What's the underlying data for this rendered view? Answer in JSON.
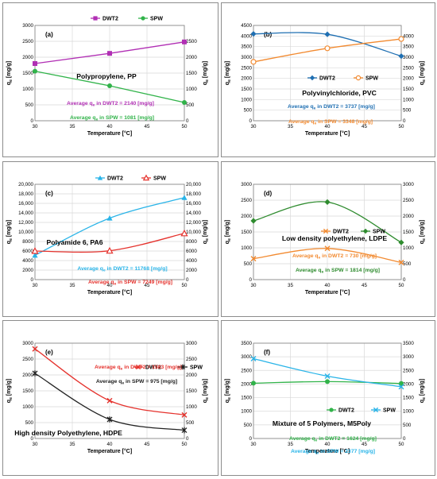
{
  "chart_data": [
    {
      "id": "a",
      "type": "line",
      "label": "(a)",
      "title": "Polypropylene, PP",
      "xlabel": "Temperature [°C]",
      "ylabel": "qe [mg/g]",
      "ylabel_symbol": "q",
      "ylabel_sub": "e",
      "ylabel_unit": " [mg/g]",
      "xlim": [
        30,
        50
      ],
      "xticks": [
        30,
        35,
        40,
        45,
        50
      ],
      "ylim": [
        0,
        3000
      ],
      "ytick_step": 500,
      "ylim_right": [
        0,
        3000
      ],
      "yticks_right": [
        0,
        500,
        1000,
        1500,
        2000,
        2500
      ],
      "x": [
        30,
        40,
        50
      ],
      "series": [
        {
          "name": "DWT2",
          "values": [
            1800,
            2120,
            2480
          ],
          "color": "#b12fb4",
          "marker": "square",
          "curve": "straight"
        },
        {
          "name": "SPW",
          "values": [
            1560,
            1100,
            575
          ],
          "color": "#31b34a",
          "marker": "circle",
          "curve": "straight"
        }
      ],
      "averages": [
        {
          "prefix": "Average q",
          "sub": "e",
          "text": " in DWT2 = 2140 [mg/g]",
          "color": "#b12fb4"
        },
        {
          "prefix": "Average q",
          "sub": "e",
          "text": " in SPW = 1081 [mg/g]",
          "color": "#31b34a"
        }
      ],
      "legend": "top-center"
    },
    {
      "id": "b",
      "type": "line",
      "label": "(b)",
      "title": "Polyvinylchloride, PVC",
      "xlabel": "Temperature [°C]",
      "ylabel": "qe [mg/g]",
      "ylabel_symbol": "q",
      "ylabel_sub": "e",
      "ylabel_unit": " [mg/g]",
      "xlim": [
        30,
        50
      ],
      "xticks": [
        30,
        35,
        40,
        45,
        50
      ],
      "ylim": [
        0,
        4500
      ],
      "ytick_step": 500,
      "ylim_right": [
        0,
        4500
      ],
      "yticks_right": [
        0,
        500,
        1000,
        1500,
        2000,
        2500,
        3000,
        3500,
        4000
      ],
      "x": [
        30,
        40,
        50
      ],
      "series": [
        {
          "name": "DWT2",
          "values": [
            4100,
            4080,
            3050
          ],
          "color": "#1f6fb2",
          "marker": "diamond",
          "curve": "smooth"
        },
        {
          "name": "SPW",
          "values": [
            2780,
            3420,
            3860
          ],
          "color": "#f28a30",
          "marker": "circle-open",
          "curve": "smooth"
        }
      ],
      "averages": [
        {
          "prefix": "Average q",
          "sub": "e",
          "text": " in DWT2 = 3737 [mg/g]",
          "color": "#1f6fb2"
        },
        {
          "prefix": "Average q",
          "sub": "e",
          "text": " in SPW = 3348 [mg/g]",
          "color": "#f28a30"
        }
      ],
      "legend": "center"
    },
    {
      "id": "c",
      "type": "line",
      "label": "(c)",
      "title": "Polyamide 6, PA6",
      "xlabel": "Temperature [°C]",
      "ylabel": "qe [mg/g]",
      "ylabel_symbol": "q",
      "ylabel_sub": "e",
      "ylabel_unit": " [mg/g]",
      "xlim": [
        30,
        50
      ],
      "xticks": [
        30,
        35,
        40,
        45,
        50
      ],
      "ylim": [
        0,
        20000
      ],
      "ytick_step": 2000,
      "ylim_right": [
        0,
        20000
      ],
      "yticks_right": [
        0,
        2000,
        4000,
        6000,
        8000,
        10000,
        12000,
        14000,
        16000,
        18000,
        20000
      ],
      "x": [
        30,
        40,
        50
      ],
      "series": [
        {
          "name": "DWT2",
          "values": [
            5100,
            12900,
            17200
          ],
          "color": "#29b4e8",
          "marker": "triangle",
          "curve": "smooth"
        },
        {
          "name": "SPW",
          "values": [
            6000,
            6050,
            9700
          ],
          "color": "#e5322d",
          "marker": "triangle-open",
          "curve": "smooth"
        }
      ],
      "averages": [
        {
          "prefix": "Average q",
          "sub": "e",
          "text": " in DWT2 = 11768 [mg/g]",
          "color": "#29b4e8"
        },
        {
          "prefix": "Average q",
          "sub": "e",
          "text": " in SPW = 7249 [mg/g]",
          "color": "#e5322d"
        }
      ],
      "legend": "top-left"
    },
    {
      "id": "d",
      "type": "line",
      "label": "(d)",
      "title": "Low density polyethylene, LDPE",
      "xlabel": "Temperature [°C]",
      "ylabel": "qe [mg/g]",
      "ylabel_symbol": "q",
      "ylabel_sub": "e",
      "ylabel_unit": " [mg/g]",
      "xlim": [
        30,
        50
      ],
      "xticks": [
        30,
        35,
        40,
        45,
        50
      ],
      "ylim": [
        0,
        3000
      ],
      "ytick_step": 500,
      "ylim_right": [
        0,
        3000
      ],
      "yticks_right": [
        0,
        500,
        1000,
        1500,
        2000,
        2500,
        3000
      ],
      "x": [
        30,
        40,
        50
      ],
      "series": [
        {
          "name": "DWT2",
          "values": [
            660,
            980,
            540
          ],
          "color": "#f28a30",
          "marker": "x",
          "curve": "smooth"
        },
        {
          "name": "SPW",
          "values": [
            1850,
            2440,
            1170
          ],
          "color": "#2e8b2e",
          "marker": "diamond",
          "curve": "smooth"
        }
      ],
      "averages": [
        {
          "prefix": "Average q",
          "sub": "e",
          "text": " in DWT2 = 730 [mg/g]",
          "color": "#f28a30"
        },
        {
          "prefix": "Average q",
          "sub": "e",
          "text": " in SPW = 1814 [mg/g]",
          "color": "#2e8b2e"
        }
      ],
      "legend": "center"
    },
    {
      "id": "e",
      "type": "line",
      "label": "(e)",
      "title": "High density Polyethylene, HDPE",
      "xlabel": "Temperature [°C]",
      "ylabel": "qe [mg/g]",
      "ylabel_symbol": "q",
      "ylabel_sub": "e",
      "ylabel_unit": " [mg/g]",
      "xlim": [
        30,
        50
      ],
      "xticks": [
        30,
        35,
        40,
        45,
        50
      ],
      "ylim": [
        0,
        3000
      ],
      "ytick_step": 500,
      "ylim_right": [
        0,
        3000
      ],
      "yticks_right": [
        0,
        500,
        1000,
        1500,
        2000,
        2500,
        3000
      ],
      "x": [
        30,
        40,
        50
      ],
      "series": [
        {
          "name": "DWT2",
          "values": [
            2820,
            1190,
            740
          ],
          "color": "#e5322d",
          "marker": "x",
          "curve": "smooth"
        },
        {
          "name": "SPW",
          "values": [
            2050,
            600,
            260
          ],
          "color": "#222222",
          "marker": "star",
          "curve": "smooth"
        }
      ],
      "averages": [
        {
          "prefix": "Average q",
          "sub": "e",
          "text": " in DWT2 = 1583 [mg/g]",
          "color": "#e5322d"
        },
        {
          "prefix": "Average q",
          "sub": "e",
          "text": " in SPW = 975 [mg/g]",
          "color": "#222222"
        }
      ],
      "legend": "top-right"
    },
    {
      "id": "f",
      "type": "line",
      "label": "(f)",
      "title": "Mixture of 5 Polymers, M5Poly",
      "xlabel": "Temperature [°C]",
      "ylabel": "qe [mg/g]",
      "ylabel_symbol": "q",
      "ylabel_sub": "e",
      "ylabel_unit": " [mg/g]",
      "xlim": [
        30,
        50
      ],
      "xticks": [
        30,
        35,
        40,
        45,
        50
      ],
      "ylim": [
        0,
        3500
      ],
      "ytick_step": 500,
      "ylim_right": [
        0,
        3500
      ],
      "yticks_right": [
        0,
        500,
        1000,
        1500,
        2000,
        2500,
        3000,
        3500
      ],
      "x": [
        30,
        40,
        50
      ],
      "series": [
        {
          "name": "DWT2",
          "values": [
            2030,
            2090,
            2020
          ],
          "color": "#31b34a",
          "marker": "circle",
          "curve": "smooth"
        },
        {
          "name": "SPW",
          "values": [
            2930,
            2290,
            1900
          ],
          "color": "#29b4e8",
          "marker": "x",
          "curve": "smooth"
        }
      ],
      "averages": [
        {
          "prefix": "Average q",
          "sub": "e",
          "text": " in DWT2 = 1624 [mg/g]",
          "color": "#31b34a"
        },
        {
          "prefix": "Average q",
          "sub": "e",
          "text": " in SPW = 2377 [mg/g]",
          "color": "#29b4e8"
        }
      ],
      "legend": "center"
    }
  ]
}
